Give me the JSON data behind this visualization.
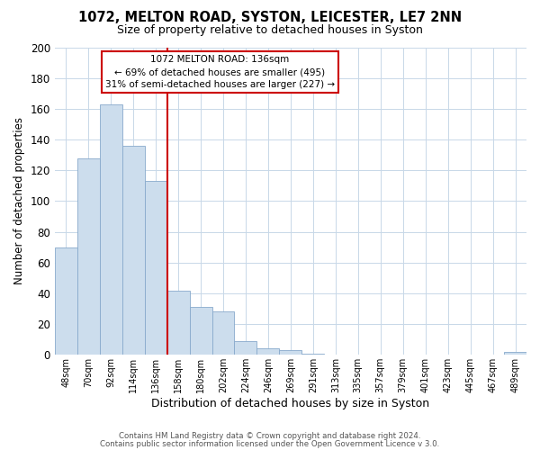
{
  "title": "1072, MELTON ROAD, SYSTON, LEICESTER, LE7 2NN",
  "subtitle": "Size of property relative to detached houses in Syston",
  "xlabel": "Distribution of detached houses by size in Syston",
  "ylabel": "Number of detached properties",
  "bar_labels": [
    "48sqm",
    "70sqm",
    "92sqm",
    "114sqm",
    "136sqm",
    "158sqm",
    "180sqm",
    "202sqm",
    "224sqm",
    "246sqm",
    "269sqm",
    "291sqm",
    "313sqm",
    "335sqm",
    "357sqm",
    "379sqm",
    "401sqm",
    "423sqm",
    "445sqm",
    "467sqm",
    "489sqm"
  ],
  "bar_values": [
    70,
    128,
    163,
    136,
    113,
    42,
    31,
    28,
    9,
    4,
    3,
    1,
    0,
    0,
    0,
    0,
    0,
    0,
    0,
    0,
    2
  ],
  "bar_color": "#ccdded",
  "bar_edge_color": "#88aacc",
  "vline_color": "#cc0000",
  "ylim": [
    0,
    200
  ],
  "yticks": [
    0,
    20,
    40,
    60,
    80,
    100,
    120,
    140,
    160,
    180,
    200
  ],
  "annotation_title": "1072 MELTON ROAD: 136sqm",
  "annotation_line1": "← 69% of detached houses are smaller (495)",
  "annotation_line2": "31% of semi-detached houses are larger (227) →",
  "annotation_box_color": "white",
  "annotation_box_edge": "#cc0000",
  "footer_line1": "Contains HM Land Registry data © Crown copyright and database right 2024.",
  "footer_line2": "Contains public sector information licensed under the Open Government Licence v 3.0.",
  "background_color": "white",
  "grid_color": "#c8d8e8"
}
